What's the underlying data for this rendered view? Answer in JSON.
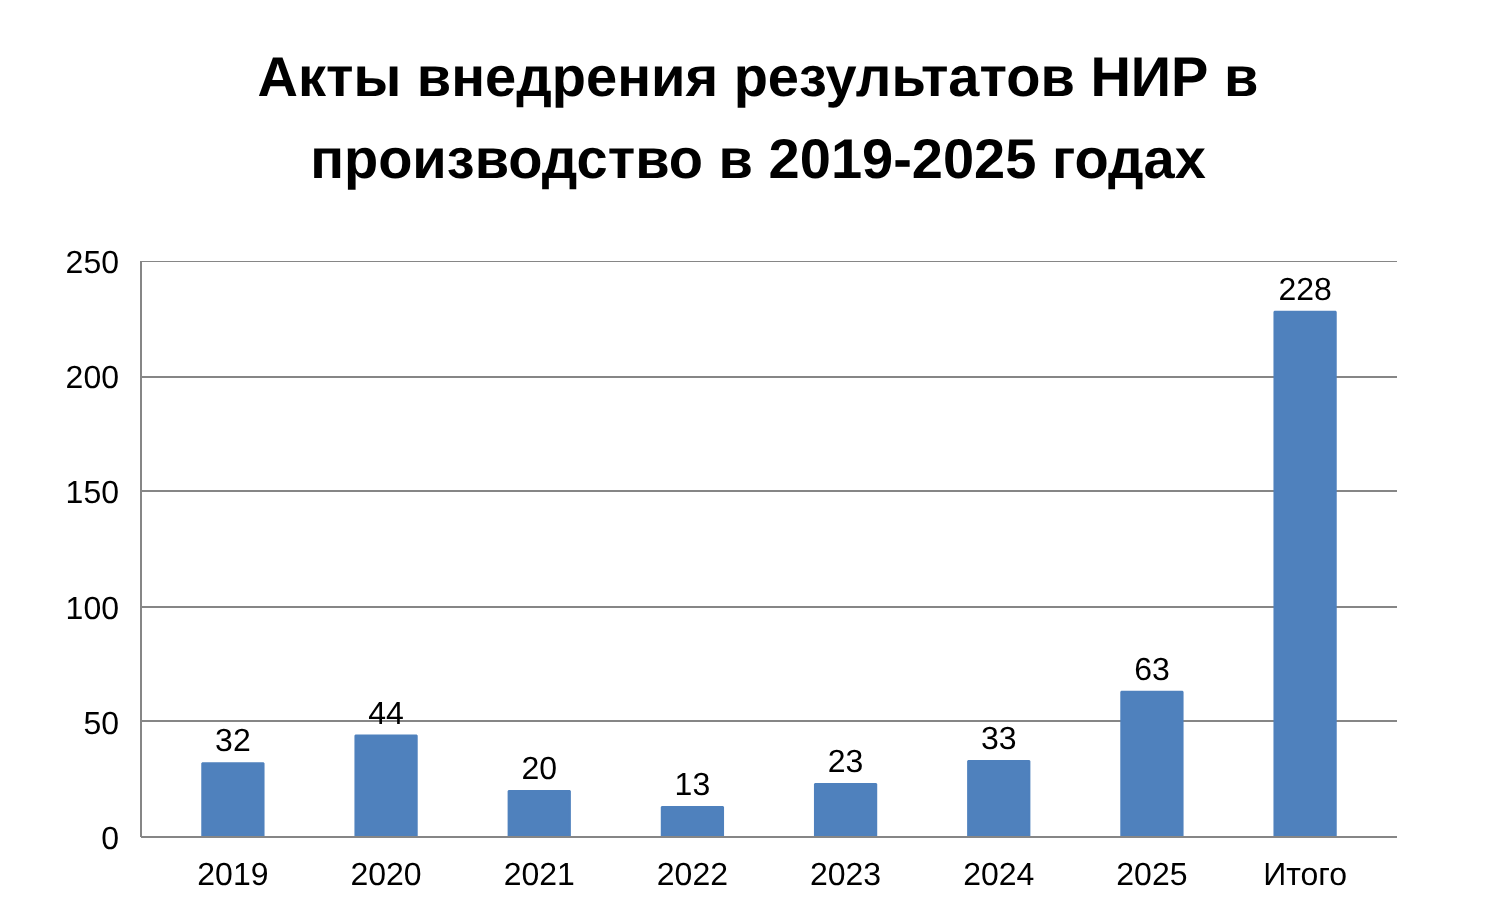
{
  "chart_data": {
    "type": "bar",
    "title": "Акты внедрения результатов НИР в производство в 2019-2025 годах",
    "categories": [
      "2019",
      "2020",
      "2021",
      "2022",
      "2023",
      "2024",
      "2025",
      "Итого"
    ],
    "values": [
      32,
      44,
      20,
      13,
      23,
      33,
      63,
      228
    ],
    "color": "#4f81bd",
    "ylim": [
      0,
      250
    ],
    "yticks": [
      0,
      50,
      100,
      150,
      200,
      250
    ],
    "grid": "y",
    "data_labels": true
  }
}
